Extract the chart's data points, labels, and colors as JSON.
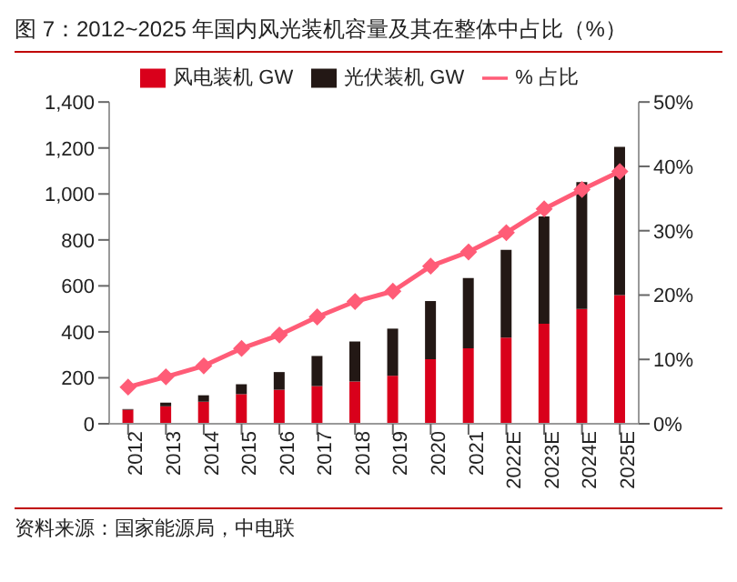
{
  "chart_data": {
    "type": "bar",
    "title": "图 7：2012~2025 年国内风光装机容量及其在整体中占比（%）",
    "categories": [
      "2012",
      "2013",
      "2014",
      "2015",
      "2016",
      "2017",
      "2018",
      "2019",
      "2020",
      "2021",
      "2022E",
      "2023E",
      "2024E",
      "2025E"
    ],
    "stacked": true,
    "series": [
      {
        "name": "风电装机  GW",
        "color": "#d9001b",
        "values": [
          61,
          76,
          96,
          129,
          148,
          164,
          184,
          209,
          281,
          328,
          375,
          435,
          500,
          560
        ]
      },
      {
        "name": "光伏装机 GW",
        "color": "#231815",
        "values": [
          3,
          16,
          28,
          43,
          77,
          131,
          174,
          205,
          253,
          306,
          382,
          467,
          552,
          645
        ]
      },
      {
        "name": "% 占比",
        "type": "line",
        "axis": "y2",
        "color": "#ff5c77",
        "marker": "diamond",
        "values": [
          5.7,
          7.3,
          9.0,
          11.7,
          13.8,
          16.6,
          19.0,
          20.6,
          24.5,
          26.7,
          29.7,
          33.4,
          36.4,
          39.2
        ]
      }
    ],
    "ylim": [
      0,
      1400
    ],
    "yticks": [
      0,
      200,
      400,
      600,
      800,
      {
        "value": 1000,
        "label": "1,000"
      },
      {
        "value": 1200,
        "label": "1,200"
      },
      {
        "value": 1400,
        "label": "1,400"
      }
    ],
    "y2lim": [
      0,
      50
    ],
    "y2ticks": [
      {
        "value": 0,
        "label": "0%"
      },
      {
        "value": 10,
        "label": "10%"
      },
      {
        "value": 20,
        "label": "20%"
      },
      {
        "value": 30,
        "label": "30%"
      },
      {
        "value": 40,
        "label": "40%"
      },
      {
        "value": 50,
        "label": "50%"
      }
    ],
    "legend": "top",
    "grid": false,
    "annotations": [
      "资料来源：国家能源局，中电联"
    ]
  }
}
